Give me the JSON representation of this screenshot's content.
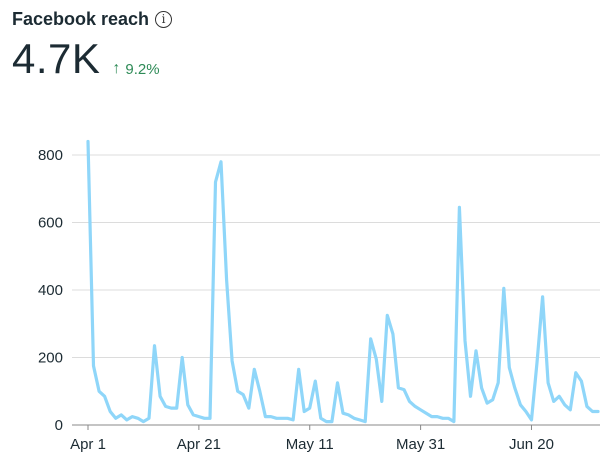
{
  "header": {
    "title": "Facebook reach",
    "metric": "4.7K",
    "change": "9.2%",
    "change_color": "#2e8b57"
  },
  "colors": {
    "line": "#8fd6f9",
    "grid": "#dcdcdc",
    "axis": "#888888"
  },
  "chart_data": {
    "type": "line",
    "title": "",
    "xlabel": "",
    "ylabel": "",
    "ylim": [
      0,
      880
    ],
    "yticks": [
      0,
      200,
      400,
      600,
      800
    ],
    "grid": true,
    "x_start": "Apr 1",
    "x_ticks": [
      {
        "label": "Apr 1",
        "index": 0
      },
      {
        "label": "Apr 21",
        "index": 20
      },
      {
        "label": "May 11",
        "index": 40
      },
      {
        "label": "May 31",
        "index": 60
      },
      {
        "label": "Jun 20",
        "index": 80
      }
    ],
    "series": [
      {
        "values": [
          840,
          175,
          100,
          85,
          40,
          20,
          30,
          15,
          25,
          20,
          10,
          20,
          235,
          85,
          55,
          50,
          50,
          200,
          60,
          30,
          25,
          20,
          20,
          720,
          780,
          430,
          190,
          100,
          90,
          50,
          165,
          100,
          25,
          25,
          20,
          20,
          20,
          15,
          165,
          40,
          50,
          130,
          20,
          10,
          10,
          125,
          35,
          30,
          20,
          15,
          10,
          255,
          195,
          70,
          325,
          270,
          110,
          105,
          70,
          55,
          45,
          35,
          25,
          25,
          20,
          20,
          10,
          645,
          250,
          85,
          220,
          110,
          65,
          75,
          125,
          405,
          170,
          110,
          60,
          40,
          15,
          185,
          380,
          125,
          70,
          85,
          60,
          45,
          155,
          130,
          55,
          40,
          40
        ]
      }
    ]
  }
}
